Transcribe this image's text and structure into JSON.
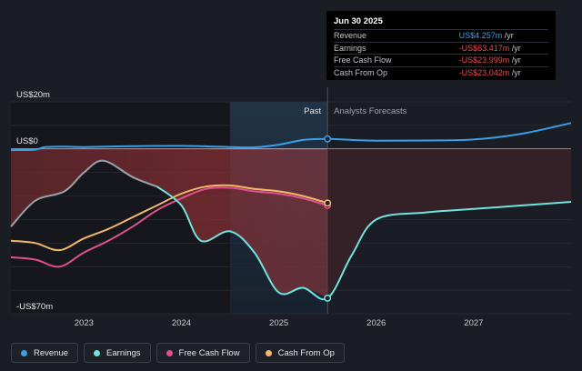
{
  "tooltip": {
    "date": "Jun 30 2025",
    "rows": [
      {
        "label": "Revenue",
        "value": "US$4.257m",
        "unit": "/yr",
        "color": "#3b9fe8"
      },
      {
        "label": "Earnings",
        "value": "-US$63.417m",
        "unit": "/yr",
        "color": "#e84b4b"
      },
      {
        "label": "Free Cash Flow",
        "value": "-US$23.999m",
        "unit": "/yr",
        "color": "#e84b4b"
      },
      {
        "label": "Cash From Op",
        "value": "-US$23.042m",
        "unit": "/yr",
        "color": "#e84b4b"
      }
    ]
  },
  "labels": {
    "past": "Past",
    "forecast": "Analysts Forecasts"
  },
  "legend": [
    {
      "label": "Revenue",
      "color": "#3b9fe8"
    },
    {
      "label": "Earnings",
      "color": "#6fe3e0"
    },
    {
      "label": "Free Cash Flow",
      "color": "#e0508f"
    },
    {
      "label": "Cash From Op",
      "color": "#f2b86a"
    }
  ],
  "chart_data": {
    "type": "line",
    "ylim": [
      -70,
      20
    ],
    "xlim": [
      2022.25,
      2028.0
    ],
    "y_tick_labels": [
      {
        "value": 20,
        "label": "US$20m"
      },
      {
        "value": 0,
        "label": "US$0"
      },
      {
        "value": -70,
        "label": "-US$70m"
      }
    ],
    "x_ticks": [
      2023,
      2024,
      2025,
      2026,
      2027
    ],
    "x_tick_labels": [
      "2023",
      "2024",
      "2025",
      "2026",
      "2027"
    ],
    "past_end": 2025.5,
    "highlight_start": 2024.5,
    "series": [
      {
        "key": "revenue",
        "color": "#3b9fe8",
        "points": [
          [
            2022.25,
            -0.5
          ],
          [
            2022.5,
            -0.3
          ],
          [
            2022.6,
            0.8
          ],
          [
            2022.8,
            1.0
          ],
          [
            2023.0,
            0.8
          ],
          [
            2023.5,
            1.2
          ],
          [
            2024.0,
            1.3
          ],
          [
            2024.5,
            0.8
          ],
          [
            2024.75,
            0.7
          ],
          [
            2025.0,
            1.8
          ],
          [
            2025.25,
            3.8
          ],
          [
            2025.5,
            4.26
          ],
          [
            2025.75,
            3.8
          ],
          [
            2026.0,
            3.5
          ],
          [
            2026.5,
            3.6
          ],
          [
            2027.0,
            4.0
          ],
          [
            2027.5,
            6.5
          ],
          [
            2028.0,
            11.0
          ]
        ]
      },
      {
        "key": "earnings",
        "color": "#6fe3e0",
        "points": [
          [
            2022.25,
            -33.0
          ],
          [
            2022.5,
            -22.0
          ],
          [
            2022.8,
            -18.0
          ],
          [
            2023.0,
            -10.0
          ],
          [
            2023.2,
            -5.0
          ],
          [
            2023.5,
            -12.0
          ],
          [
            2023.75,
            -16.0
          ],
          [
            2024.0,
            -24.0
          ],
          [
            2024.2,
            -39.0
          ],
          [
            2024.5,
            -35.0
          ],
          [
            2024.75,
            -44.0
          ],
          [
            2025.0,
            -61.0
          ],
          [
            2025.25,
            -59.0
          ],
          [
            2025.5,
            -63.4
          ],
          [
            2025.75,
            -45.0
          ],
          [
            2026.0,
            -30.0
          ],
          [
            2026.5,
            -27.0
          ],
          [
            2027.0,
            -25.5
          ],
          [
            2027.5,
            -24.0
          ],
          [
            2028.0,
            -22.5
          ]
        ]
      },
      {
        "key": "free_cash_flow",
        "color": "#e0508f",
        "points": [
          [
            2022.25,
            -46.0
          ],
          [
            2022.5,
            -47.0
          ],
          [
            2022.75,
            -50.0
          ],
          [
            2023.0,
            -44.0
          ],
          [
            2023.25,
            -39.0
          ],
          [
            2023.5,
            -33.0
          ],
          [
            2023.75,
            -26.0
          ],
          [
            2024.0,
            -21.0
          ],
          [
            2024.25,
            -17.0
          ],
          [
            2024.5,
            -16.5
          ],
          [
            2024.75,
            -18.0
          ],
          [
            2025.0,
            -19.0
          ],
          [
            2025.25,
            -21.0
          ],
          [
            2025.5,
            -24.0
          ]
        ]
      },
      {
        "key": "cash_from_op",
        "color": "#f2b86a",
        "points": [
          [
            2022.25,
            -39.0
          ],
          [
            2022.5,
            -40.0
          ],
          [
            2022.75,
            -43.0
          ],
          [
            2023.0,
            -38.0
          ],
          [
            2023.25,
            -34.0
          ],
          [
            2023.5,
            -29.0
          ],
          [
            2023.75,
            -24.0
          ],
          [
            2024.0,
            -19.0
          ],
          [
            2024.25,
            -16.0
          ],
          [
            2024.5,
            -15.5
          ],
          [
            2024.75,
            -17.0
          ],
          [
            2025.0,
            -18.0
          ],
          [
            2025.25,
            -20.0
          ],
          [
            2025.5,
            -23.0
          ]
        ]
      }
    ]
  }
}
